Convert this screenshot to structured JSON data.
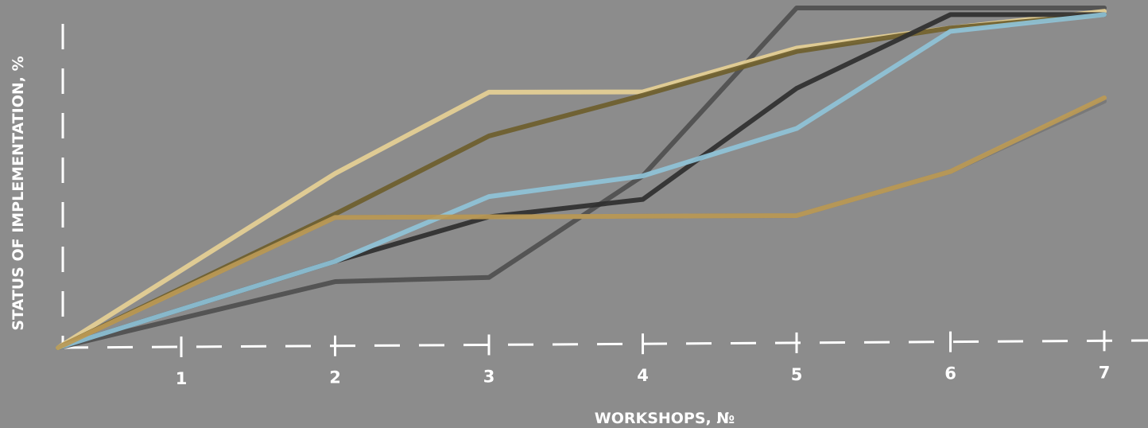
{
  "chart_data": {
    "type": "line",
    "title": "",
    "xlabel": "WORKSHOPS, №",
    "ylabel": "STATUS OF IMPLEMENTATION, %",
    "x_ticks": [
      1,
      2,
      3,
      4,
      5,
      6,
      7
    ],
    "x_tick_labels": [
      "1",
      "2",
      "3",
      "4",
      "5",
      "6",
      "7"
    ],
    "xlim": [
      0,
      7
    ],
    "ylim": [
      0,
      100
    ],
    "grid": false,
    "legend": "none",
    "x": [
      0,
      2,
      3,
      4,
      5,
      6,
      7
    ],
    "series": [
      {
        "color": "#4f4f4f",
        "values": [
          0,
          19,
          20,
          50,
          100,
          100,
          100
        ]
      },
      {
        "color": "#777777",
        "values": [
          0,
          38,
          38,
          38,
          38,
          51,
          72
        ]
      },
      {
        "color": "#e6d095",
        "values": [
          0,
          51,
          75,
          75,
          88,
          94,
          99
        ]
      },
      {
        "color": "#6e5e2d",
        "values": [
          0,
          39,
          62,
          74,
          87,
          94,
          98
        ]
      },
      {
        "color": "#2f2f2f",
        "values": [
          0,
          25,
          38,
          43,
          76,
          98,
          98
        ]
      },
      {
        "color": "#8fc3d8",
        "values": [
          0,
          25,
          44,
          50,
          64,
          93,
          98
        ]
      },
      {
        "color": "#bc9a55",
        "values": [
          0,
          38,
          38,
          38,
          38,
          51,
          73
        ]
      }
    ]
  }
}
